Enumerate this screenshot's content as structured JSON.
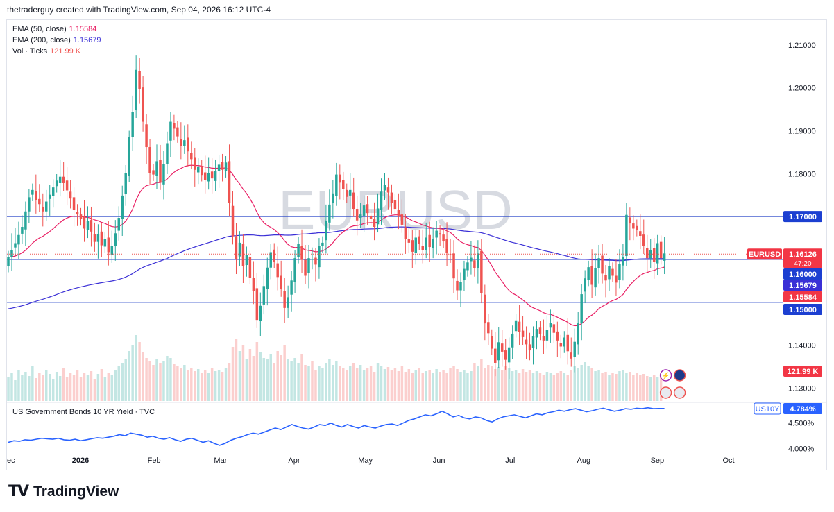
{
  "header": {
    "attribution": "thetraderguy created with TradingView.com, Sep 04, 2026 16:12 UTC-4"
  },
  "legend": {
    "ema50_label": "EMA (50, close)",
    "ema50_value": "1.15584",
    "ema200_label": "EMA (200, close)",
    "ema200_value": "1.15679",
    "vol_label": "Vol · Ticks",
    "vol_value": "121.99 K"
  },
  "watermark": "EURUSD",
  "lower_pane": {
    "title": "US Government Bonds 10 YR Yield · TVC"
  },
  "footer": {
    "brand": "TradingView"
  },
  "colors": {
    "up": "#26a69a",
    "down": "#ef5350",
    "ema50": "#e91e63",
    "ema200": "#3a2fd6",
    "hline": "#2340c8",
    "yield": "#2962ff",
    "watermark": "#d1d4dc"
  },
  "icons": [
    "lightning-event-icon",
    "eu-flag-icon",
    "us-flag-icon",
    "us-flag-icon"
  ],
  "chart_data": [
    {
      "type": "candlestick",
      "symbol": "EURUSD",
      "ylim": [
        1.127,
        1.215
      ],
      "y_ticks": [
        "1.21000",
        "1.20000",
        "1.19000",
        "1.18000",
        "1.14000",
        "1.13000"
      ],
      "x_ticks": [
        "ec",
        "2026",
        "Feb",
        "Mar",
        "Apr",
        "May",
        "Jun",
        "Jul",
        "Aug",
        "Sep",
        "Oct"
      ],
      "x_tick_dates": [
        "2025-12-01",
        "2026-01-01",
        "2026-02-01",
        "2026-03-01",
        "2026-04-01",
        "2026-05-01",
        "2026-06-01",
        "2026-07-01",
        "2026-08-01",
        "2026-09-01",
        "2026-10-01"
      ],
      "last_date": "2026-09-04",
      "horizontal_lines": [
        1.17,
        1.16,
        1.15
      ],
      "price_labels": [
        {
          "text": "1.17000",
          "value": 1.17,
          "kind": "level"
        },
        {
          "text": "EURUSD",
          "value": 1.16126,
          "kind": "symbol"
        },
        {
          "text": "1.16126",
          "value": 1.16126,
          "kind": "price",
          "sub": "47:20"
        },
        {
          "text": "1.16000",
          "value": 1.16,
          "kind": "level"
        },
        {
          "text": "1.15679",
          "value": 1.15679,
          "kind": "ema200"
        },
        {
          "text": "1.15584",
          "value": 1.15584,
          "kind": "ema50"
        },
        {
          "text": "1.15000",
          "value": 1.15,
          "kind": "level"
        },
        {
          "text": "121.99 K",
          "value": 121.99,
          "kind": "volume"
        }
      ],
      "closes": [
        1.1605,
        1.1622,
        1.1638,
        1.1657,
        1.1676,
        1.1712,
        1.1745,
        1.1762,
        1.1738,
        1.1729,
        1.1712,
        1.1735,
        1.1751,
        1.1768,
        1.1784,
        1.1793,
        1.1778,
        1.1761,
        1.1742,
        1.1716,
        1.1705,
        1.1694,
        1.1672,
        1.1689,
        1.1665,
        1.1641,
        1.1659,
        1.1633,
        1.1648,
        1.1617,
        1.1632,
        1.1661,
        1.1697,
        1.1749,
        1.1801,
        1.1885,
        1.1943,
        1.2042,
        1.1998,
        1.1921,
        1.1862,
        1.1802,
        1.1798,
        1.1829,
        1.1781,
        1.1822,
        1.1871,
        1.1921,
        1.1905,
        1.1887,
        1.1865,
        1.1878,
        1.1852,
        1.1834,
        1.1809,
        1.1817,
        1.1797,
        1.1785,
        1.1802,
        1.1789,
        1.1806,
        1.1821,
        1.1809,
        1.1826,
        1.1731,
        1.1654,
        1.1601,
        1.1639,
        1.1584,
        1.1611,
        1.1557,
        1.1527,
        1.1459,
        1.1492,
        1.1538,
        1.1581,
        1.1617,
        1.1594,
        1.1559,
        1.1532,
        1.1487,
        1.1512,
        1.1551,
        1.1603,
        1.1637,
        1.1599,
        1.1562,
        1.1603,
        1.1601,
        1.1588,
        1.1631,
        1.1639,
        1.1689,
        1.1728,
        1.1754,
        1.1798,
        1.1779,
        1.1765,
        1.1746,
        1.1762,
        1.1718,
        1.1691,
        1.1705,
        1.1726,
        1.1708,
        1.1694,
        1.1676,
        1.1719,
        1.1758,
        1.1774,
        1.1756,
        1.1732,
        1.1718,
        1.1702,
        1.1681,
        1.1648,
        1.1639,
        1.1618,
        1.1651,
        1.1637,
        1.1622,
        1.1651,
        1.1629,
        1.1648,
        1.1667,
        1.1658,
        1.1642,
        1.1615,
        1.1611,
        1.1556,
        1.1528,
        1.1547,
        1.1578,
        1.1593,
        1.1604,
        1.1579,
        1.1614,
        1.1521,
        1.1451,
        1.1428,
        1.1392,
        1.1359,
        1.1407,
        1.1385,
        1.1366,
        1.1395,
        1.1427,
        1.1458,
        1.1431,
        1.1419,
        1.1402,
        1.1388,
        1.1421,
        1.1438,
        1.1427,
        1.1411,
        1.1435,
        1.1452,
        1.1429,
        1.1411,
        1.1397,
        1.1418,
        1.1386,
        1.1369,
        1.1408,
        1.1451,
        1.1519,
        1.1556,
        1.1582,
        1.1541,
        1.1579,
        1.1603,
        1.1567,
        1.1551,
        1.1584,
        1.1562,
        1.1546,
        1.1589,
        1.1605,
        1.1704,
        1.1684,
        1.1672,
        1.1669,
        1.1655,
        1.1632,
        1.1603,
        1.1621,
        1.1594,
        1.1638,
        1.1603,
        1.1614
      ],
      "volume_scale_max": 121.99,
      "volume_rel": [
        0.35,
        0.4,
        0.3,
        0.45,
        0.38,
        0.42,
        0.36,
        0.5,
        0.33,
        0.4,
        0.37,
        0.44,
        0.39,
        0.31,
        0.42,
        0.36,
        0.48,
        0.34,
        0.41,
        0.38,
        0.45,
        0.35,
        0.4,
        0.37,
        0.43,
        0.32,
        0.39,
        0.46,
        0.35,
        0.41,
        0.38,
        0.44,
        0.5,
        0.55,
        0.6,
        0.72,
        0.8,
        0.95,
        0.85,
        0.7,
        0.62,
        0.58,
        0.52,
        0.6,
        0.55,
        0.57,
        0.65,
        0.62,
        0.54,
        0.5,
        0.47,
        0.52,
        0.45,
        0.48,
        0.43,
        0.46,
        0.41,
        0.44,
        0.4,
        0.47,
        0.43,
        0.45,
        0.42,
        0.48,
        0.55,
        0.78,
        0.9,
        0.72,
        0.8,
        0.6,
        0.75,
        0.65,
        0.85,
        0.7,
        0.62,
        0.6,
        0.68,
        0.55,
        0.72,
        0.66,
        0.8,
        0.6,
        0.58,
        0.62,
        0.55,
        0.68,
        0.52,
        0.5,
        0.57,
        0.45,
        0.5,
        0.48,
        0.55,
        0.6,
        0.52,
        0.58,
        0.5,
        0.48,
        0.45,
        0.5,
        0.55,
        0.47,
        0.52,
        0.44,
        0.48,
        0.5,
        0.42,
        0.55,
        0.5,
        0.46,
        0.49,
        0.44,
        0.47,
        0.43,
        0.5,
        0.42,
        0.46,
        0.41,
        0.44,
        0.47,
        0.4,
        0.43,
        0.45,
        0.41,
        0.46,
        0.42,
        0.44,
        0.4,
        0.48,
        0.5,
        0.46,
        0.42,
        0.45,
        0.41,
        0.43,
        0.55,
        0.5,
        0.6,
        0.48,
        0.52,
        0.5,
        0.46,
        0.49,
        0.44,
        0.5,
        0.47,
        0.43,
        0.45,
        0.41,
        0.46,
        0.42,
        0.44,
        0.4,
        0.43,
        0.41,
        0.38,
        0.42,
        0.4,
        0.37,
        0.41,
        0.43,
        0.4,
        0.38,
        0.45,
        0.5,
        0.48,
        0.52,
        0.56,
        0.5,
        0.47,
        0.43,
        0.45,
        0.4,
        0.42,
        0.38,
        0.41,
        0.39,
        0.43,
        0.45,
        0.4,
        0.42,
        0.38,
        0.4,
        0.37,
        0.39,
        0.36,
        0.35,
        0.38,
        0.34,
        0.36
      ]
    },
    {
      "type": "line",
      "symbol": "US10Y",
      "title": "US Government Bonds 10 YR Yield · TVC",
      "ylim": [
        3.95,
        4.85
      ],
      "y_ticks": [
        "4.500%",
        "4.000%"
      ],
      "last_label": "4.784%",
      "last_value": 4.784,
      "values": [
        4.12,
        4.15,
        4.14,
        4.17,
        4.16,
        4.18,
        4.2,
        4.19,
        4.18,
        4.2,
        4.17,
        4.16,
        4.18,
        4.15,
        4.17,
        4.19,
        4.21,
        4.2,
        4.22,
        4.24,
        4.27,
        4.25,
        4.3,
        4.28,
        4.26,
        4.22,
        4.24,
        4.2,
        4.18,
        4.21,
        4.17,
        4.14,
        4.18,
        4.2,
        4.16,
        4.12,
        4.15,
        4.1,
        4.06,
        4.1,
        4.16,
        4.2,
        4.23,
        4.27,
        4.3,
        4.28,
        4.32,
        4.36,
        4.4,
        4.37,
        4.42,
        4.47,
        4.43,
        4.4,
        4.38,
        4.42,
        4.47,
        4.45,
        4.5,
        4.45,
        4.42,
        4.47,
        4.43,
        4.4,
        4.45,
        4.42,
        4.4,
        4.44,
        4.47,
        4.48,
        4.45,
        4.5,
        4.55,
        4.58,
        4.62,
        4.66,
        4.64,
        4.68,
        4.73,
        4.68,
        4.62,
        4.65,
        4.6,
        4.58,
        4.62,
        4.6,
        4.55,
        4.52,
        4.58,
        4.62,
        4.64,
        4.66,
        4.63,
        4.6,
        4.64,
        4.68,
        4.66,
        4.7,
        4.72,
        4.75,
        4.73,
        4.76,
        4.78,
        4.75,
        4.72,
        4.74,
        4.77,
        4.79,
        4.76,
        4.73,
        4.75,
        4.78,
        4.77,
        4.79,
        4.78,
        4.8,
        4.782,
        4.785,
        4.784
      ]
    }
  ]
}
